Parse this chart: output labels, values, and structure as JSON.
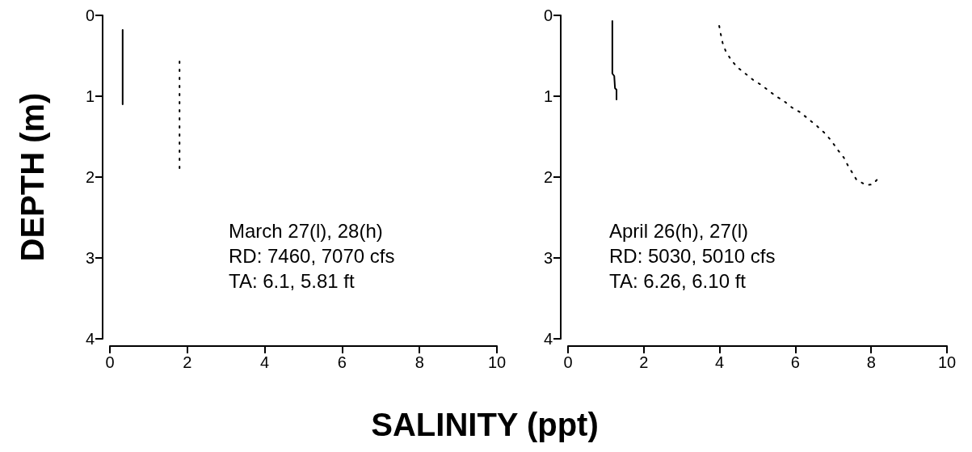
{
  "chart_data": [
    {
      "type": "line",
      "xlabel": "SALINITY (ppt)",
      "ylabel": "DEPTH (m)",
      "xlim": [
        0,
        10
      ],
      "xticks": [
        0,
        2,
        4,
        6,
        8,
        10
      ],
      "ylim": [
        4,
        0
      ],
      "yticks": [
        0,
        1,
        2,
        3,
        4
      ],
      "grid": false,
      "marker": "none",
      "annotations": [
        "March 27(l), 28(h)\nRD: 7460, 7070 cfs\nTA: 6.1, 5.81 ft"
      ],
      "series": [
        {
          "color": "#000000",
          "line_style": "solid",
          "x": [
            0.33,
            0.33
          ],
          "values": [
            0.18,
            1.1
          ]
        },
        {
          "color": "#000000",
          "line_style": "dotted",
          "x": [
            1.8,
            1.8
          ],
          "values": [
            0.57,
            1.92
          ]
        }
      ]
    },
    {
      "type": "line",
      "xlim": [
        0,
        10
      ],
      "xticks": [
        0,
        2,
        4,
        6,
        8,
        10
      ],
      "ylim": [
        4,
        0
      ],
      "yticks": [
        0,
        1,
        2,
        3,
        4
      ],
      "grid": false,
      "marker": "none",
      "annotations": [
        "April 26(h), 27(l)\nRD: 5030, 5010 cfs\nTA: 6.26, 6.10 ft"
      ],
      "series": [
        {
          "color": "#000000",
          "line_style": "solid",
          "x": [
            1.17,
            1.17,
            1.22,
            1.24,
            1.28,
            1.28
          ],
          "values": [
            0.07,
            0.72,
            0.75,
            0.9,
            0.92,
            1.04
          ]
        },
        {
          "color": "#000000",
          "line_style": "dotted",
          "x": [
            3.99,
            4.03,
            4.08,
            4.16,
            4.29,
            4.46,
            4.68,
            4.89,
            5.1,
            5.32,
            5.49,
            5.7,
            5.91,
            6.13,
            6.34,
            6.55,
            6.76,
            6.95,
            7.11,
            7.28,
            7.39,
            7.61,
            7.87,
            8.04,
            8.22
          ],
          "values": [
            0.13,
            0.23,
            0.34,
            0.44,
            0.54,
            0.64,
            0.72,
            0.8,
            0.86,
            0.94,
            1.0,
            1.06,
            1.14,
            1.2,
            1.28,
            1.36,
            1.45,
            1.55,
            1.66,
            1.76,
            1.86,
            2.03,
            2.1,
            2.09,
            2.0
          ]
        }
      ]
    }
  ]
}
